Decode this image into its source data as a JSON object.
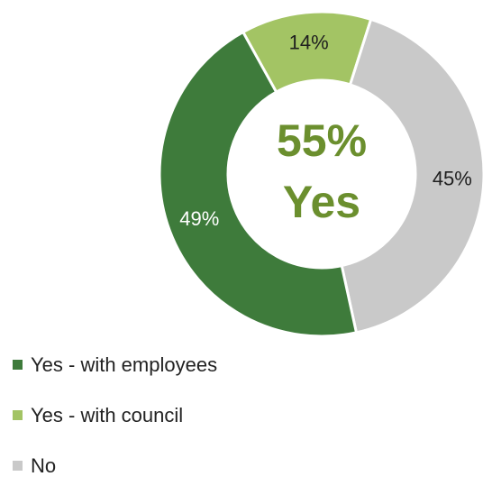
{
  "chart_data": {
    "type": "pie",
    "variant": "donut",
    "title": "",
    "categories": [
      "Yes - with employees",
      "Yes - with council",
      "No"
    ],
    "values": [
      49,
      14,
      45
    ],
    "labels": [
      "49%",
      "14%",
      "45%"
    ],
    "colors": [
      "#3e7b3b",
      "#a3c464",
      "#c9c9c9"
    ],
    "label_colors": [
      "#ffffff",
      "#1f1f1f",
      "#1f1f1f"
    ],
    "center_text": [
      "55%",
      "Yes"
    ],
    "center_text_color": "#6b8f2e",
    "legend_position": "bottom-left"
  },
  "legend": {
    "items": [
      {
        "label": "Yes - with employees",
        "color": "#3e7b3b"
      },
      {
        "label": "Yes - with council",
        "color": "#a3c464"
      },
      {
        "label": "No",
        "color": "#c9c9c9"
      }
    ]
  }
}
